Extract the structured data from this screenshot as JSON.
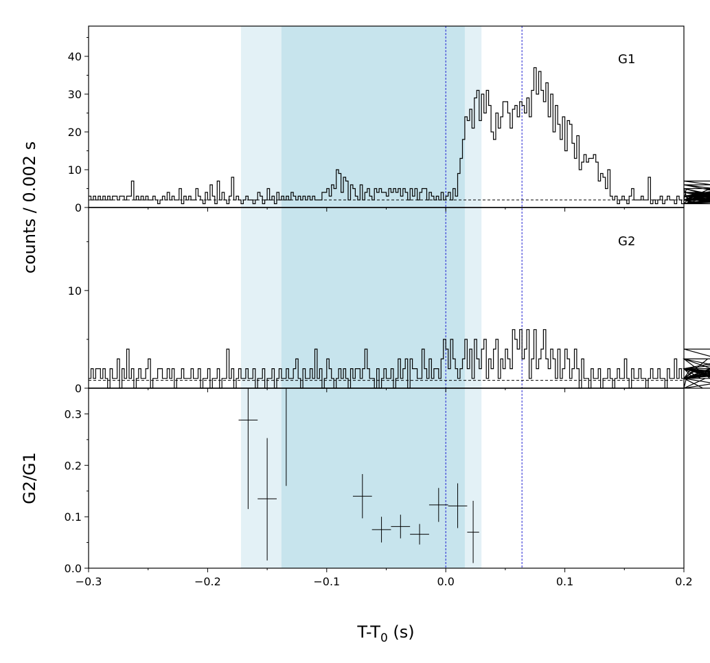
{
  "chart_data": [
    {
      "type": "line",
      "panel": "G1",
      "panel_label": "G1",
      "ylim": [
        0,
        48
      ],
      "yticks": [
        0,
        10,
        20,
        30,
        40
      ],
      "yticks_minor": [
        5,
        15,
        25,
        35,
        45
      ],
      "background": 2.0,
      "bin_width": 0.002,
      "x_start": -0.3,
      "counts": [
        3,
        2,
        3,
        2,
        3,
        2,
        3,
        2,
        3,
        2,
        3,
        3,
        2,
        3,
        3,
        2,
        3,
        3,
        7,
        2,
        3,
        2,
        3,
        2,
        3,
        2,
        2,
        3,
        2,
        1,
        2,
        3,
        2,
        4,
        2,
        3,
        2,
        2,
        5,
        1,
        3,
        2,
        3,
        2,
        2,
        5,
        3,
        2,
        1,
        4,
        2,
        6,
        3,
        1,
        7,
        2,
        4,
        2,
        1,
        3,
        8,
        2,
        3,
        2,
        1,
        2,
        3,
        2,
        2,
        1,
        2,
        4,
        3,
        1,
        2,
        5,
        2,
        3,
        1,
        4,
        2,
        3,
        2,
        3,
        2,
        4,
        3,
        2,
        3,
        2,
        3,
        2,
        3,
        2,
        3,
        2,
        2,
        2,
        4,
        4,
        5,
        3,
        6,
        5,
        10,
        9,
        4,
        8,
        7,
        2,
        6,
        5,
        3,
        2,
        6,
        2,
        4,
        5,
        3,
        2,
        5,
        4,
        5,
        4,
        4,
        3,
        5,
        4,
        5,
        4,
        5,
        3,
        5,
        4,
        2,
        5,
        3,
        5,
        2,
        4,
        5,
        5,
        2,
        4,
        3,
        2,
        3,
        2,
        4,
        2,
        3,
        4,
        2,
        5,
        3,
        9,
        13,
        18,
        24,
        23,
        26,
        21,
        29,
        31,
        23,
        30,
        25,
        31,
        27,
        20,
        18,
        25,
        21,
        24,
        28,
        28,
        25,
        21,
        26,
        27,
        24,
        28,
        27,
        25,
        29,
        24,
        31,
        37,
        30,
        36,
        31,
        28,
        33,
        24,
        30,
        20,
        27,
        22,
        18,
        24,
        15,
        23,
        22,
        17,
        13,
        19,
        10,
        12,
        14,
        12,
        13,
        13,
        14,
        12,
        7,
        9,
        8,
        5,
        10,
        3,
        2,
        3,
        1,
        2,
        3,
        2,
        1,
        3,
        5,
        2,
        2,
        2,
        3,
        2,
        2,
        8,
        1,
        2,
        1,
        2,
        3,
        1,
        2,
        3,
        2,
        2,
        1,
        3,
        2,
        1,
        2,
        5,
        1,
        3,
        2,
        1,
        2,
        2,
        2,
        1,
        2,
        4,
        3,
        2,
        2,
        6,
        4,
        3,
        5,
        2,
        4,
        3,
        5,
        2,
        2,
        4,
        1,
        3,
        2,
        2,
        3,
        1,
        2,
        2,
        2,
        3,
        3,
        2,
        6,
        3,
        4,
        1,
        3,
        2,
        4,
        2,
        7,
        3,
        2,
        1,
        4,
        3,
        2,
        3,
        6
      ]
    },
    {
      "type": "line",
      "panel": "G2",
      "panel_label": "G2",
      "ylim": [
        0,
        18.5
      ],
      "yticks": [
        0,
        10
      ],
      "yticks_minor": [
        5,
        15
      ],
      "background": 0.8,
      "bin_width": 0.002,
      "x_start": -0.3,
      "counts": [
        1,
        2,
        1,
        2,
        2,
        1,
        2,
        1,
        0,
        2,
        1,
        1,
        3,
        0,
        2,
        1,
        4,
        1,
        2,
        0,
        1,
        2,
        1,
        1,
        2,
        3,
        0,
        1,
        1,
        2,
        2,
        1,
        1,
        2,
        1,
        2,
        0,
        1,
        1,
        2,
        1,
        1,
        1,
        2,
        1,
        1,
        2,
        0,
        1,
        1,
        2,
        0,
        1,
        1,
        2,
        0,
        1,
        1,
        4,
        1,
        2,
        0,
        1,
        2,
        1,
        1,
        2,
        1,
        1,
        2,
        0,
        1,
        1,
        2,
        0,
        1,
        1,
        2,
        0,
        1,
        2,
        1,
        1,
        2,
        1,
        1,
        2,
        3,
        1,
        0,
        2,
        1,
        1,
        2,
        1,
        4,
        1,
        2,
        0,
        1,
        3,
        2,
        1,
        0,
        1,
        2,
        1,
        2,
        1,
        0,
        2,
        1,
        2,
        2,
        1,
        2,
        4,
        2,
        1,
        1,
        0,
        2,
        0,
        1,
        2,
        1,
        1,
        2,
        0,
        1,
        3,
        1,
        2,
        3,
        0,
        3,
        2,
        2,
        1,
        1,
        4,
        2,
        1,
        3,
        1,
        2,
        2,
        1,
        3,
        5,
        4,
        2,
        5,
        3,
        2,
        1,
        2,
        3,
        5,
        2,
        4,
        1,
        5,
        3,
        2,
        4,
        5,
        1,
        3,
        2,
        4,
        5,
        1,
        3,
        2,
        4,
        3,
        2,
        6,
        5,
        4,
        6,
        3,
        4,
        6,
        1,
        3,
        6,
        2,
        3,
        4,
        6,
        3,
        2,
        4,
        3,
        1,
        4,
        1,
        2,
        4,
        3,
        1,
        2,
        4,
        2,
        0,
        3,
        1,
        1,
        0,
        2,
        1,
        1,
        2,
        0,
        1,
        1,
        2,
        1,
        0,
        1,
        2,
        1,
        1,
        3,
        1,
        0,
        2,
        1,
        1,
        2,
        1,
        1,
        0,
        1,
        2,
        1,
        1,
        2,
        1,
        1,
        0,
        2,
        1,
        1,
        3,
        1,
        2,
        1,
        0,
        1,
        1,
        2,
        1,
        1,
        2,
        1,
        0,
        1,
        3,
        1,
        2,
        1,
        1,
        2,
        1,
        1,
        2,
        1,
        2,
        1,
        3,
        1,
        1,
        0,
        1,
        2,
        1,
        2,
        2,
        1,
        1,
        1,
        2,
        1,
        1,
        2,
        3,
        1,
        1,
        2,
        1,
        2,
        4,
        1,
        2,
        1,
        1,
        2,
        1
      ]
    },
    {
      "type": "scatter",
      "panel": "ratio",
      "ylabel": "G2/G1",
      "ylim": [
        0,
        0.35
      ],
      "yticks": [
        0.0,
        0.1,
        0.2,
        0.3
      ],
      "ytick_labels": [
        "0.0",
        "0.1",
        "0.2",
        "0.3"
      ],
      "yticks_minor": [
        0.05,
        0.15,
        0.25
      ],
      "points": [
        {
          "x": -0.166,
          "xerr": 0.008,
          "y": 0.288,
          "ylo": 0.115,
          "yhi": 0.35
        },
        {
          "x": -0.15,
          "xerr": 0.008,
          "y": 0.135,
          "ylo": 0.015,
          "yhi": 0.253
        },
        {
          "x": -0.134,
          "xerr": 0.0,
          "y": 0.35,
          "ylo": 0.16,
          "yhi": 0.35
        },
        {
          "x": -0.07,
          "xerr": 0.008,
          "y": 0.14,
          "ylo": 0.097,
          "yhi": 0.183
        },
        {
          "x": -0.054,
          "xerr": 0.008,
          "y": 0.075,
          "ylo": 0.05,
          "yhi": 0.1
        },
        {
          "x": -0.038,
          "xerr": 0.008,
          "y": 0.081,
          "ylo": 0.058,
          "yhi": 0.104
        },
        {
          "x": -0.022,
          "xerr": 0.008,
          "y": 0.066,
          "ylo": 0.046,
          "yhi": 0.086
        },
        {
          "x": -0.006,
          "xerr": 0.008,
          "y": 0.123,
          "ylo": 0.09,
          "yhi": 0.156
        },
        {
          "x": 0.01,
          "xerr": 0.008,
          "y": 0.121,
          "ylo": 0.078,
          "yhi": 0.165
        },
        {
          "x": 0.023,
          "xerr": 0.005,
          "y": 0.07,
          "ylo": 0.01,
          "yhi": 0.131
        }
      ]
    }
  ],
  "shared": {
    "xlim": [
      -0.3,
      0.2
    ],
    "xticks": [
      -0.3,
      -0.2,
      -0.1,
      0.0,
      0.1,
      0.2
    ],
    "xtick_labels": [
      "−0.3",
      "−0.2",
      "−0.1",
      "0.0",
      "0.1",
      "0.2"
    ],
    "xticks_minor": [
      -0.25,
      -0.15,
      -0.05,
      0.05,
      0.15
    ],
    "top_ylabel": "counts /  0.002 s",
    "xlabel_main": "T-T",
    "xlabel_sub": "0",
    "xlabel_tail": " (s)",
    "shaded_outer": [
      -0.172,
      0.03
    ],
    "shaded_inner": [
      -0.138,
      0.016
    ],
    "vlines": [
      0.0,
      0.064
    ],
    "colors": {
      "outer": "#e3f1f6",
      "inner": "#c7e4ed",
      "vline": "#1f1fd1",
      "step": "#000000"
    }
  }
}
